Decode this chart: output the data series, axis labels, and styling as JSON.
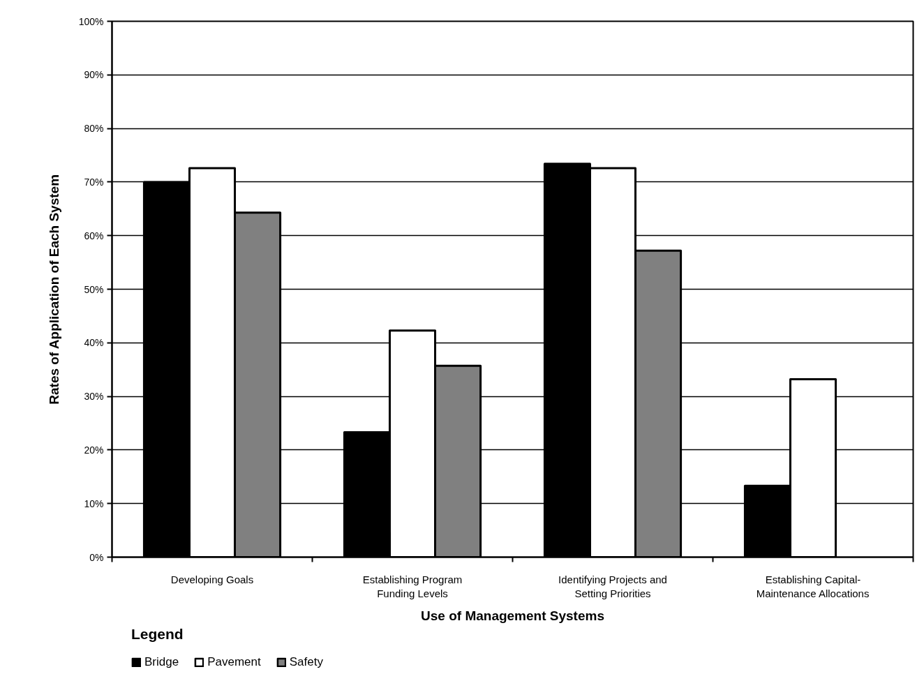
{
  "chart_data": {
    "type": "bar",
    "xlabel": "Use of Management Systems",
    "ylabel": "Rates of Application of Each System",
    "legend_title": "Legend",
    "categories": [
      "Developing Goals",
      "Establishing Program Funding Levels",
      "Identifying Projects and Setting Priorities",
      "Establishing Capital-Maintenance Allocations"
    ],
    "series": [
      {
        "name": "Bridge",
        "color": "#000000",
        "values": [
          70.0,
          23.3,
          73.4,
          13.3
        ]
      },
      {
        "name": "Pavement",
        "color": "#ffffff",
        "values": [
          72.6,
          42.3,
          72.6,
          33.2
        ]
      },
      {
        "name": "Safety",
        "color": "#808080",
        "values": [
          64.3,
          35.7,
          57.2,
          null
        ]
      }
    ],
    "ylim": [
      0,
      100
    ],
    "yticks": [
      {
        "value": 0,
        "label": "0%"
      },
      {
        "value": 10,
        "label": "10%"
      },
      {
        "value": 20,
        "label": "20%"
      },
      {
        "value": 30,
        "label": "30%"
      },
      {
        "value": 40,
        "label": "40%"
      },
      {
        "value": 50,
        "label": "50%"
      },
      {
        "value": 60,
        "label": "60%"
      },
      {
        "value": 70,
        "label": "70%"
      },
      {
        "value": 80,
        "label": "80%"
      },
      {
        "value": 90,
        "label": "90%"
      },
      {
        "value": 100,
        "label": "100%"
      }
    ],
    "grid": "y",
    "legend": "bottom left"
  }
}
